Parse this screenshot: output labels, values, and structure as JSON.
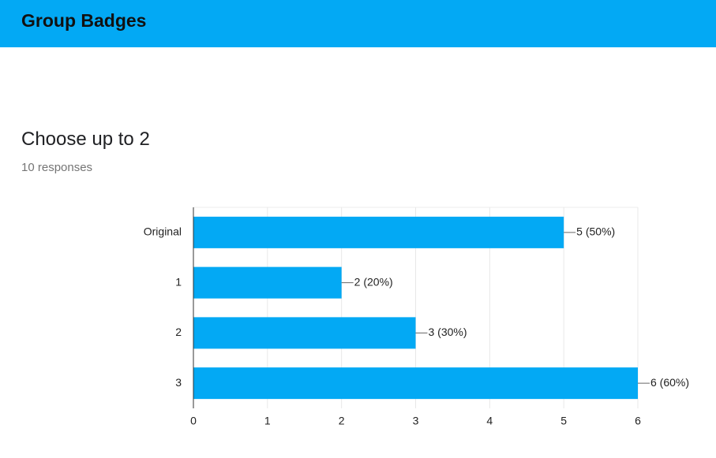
{
  "header": {
    "title": "Group Badges"
  },
  "question": {
    "title": "Choose up to 2",
    "responses": "10 responses"
  },
  "chart_data": {
    "type": "bar",
    "orientation": "horizontal",
    "categories": [
      "Original",
      "1",
      "2",
      "3"
    ],
    "values": [
      5,
      2,
      3,
      6
    ],
    "value_labels": [
      "5 (50%)",
      "2 (20%)",
      "3 (30%)",
      "6 (60%)"
    ],
    "color": "#03a9f4",
    "xlim": [
      0,
      6
    ],
    "xticks": [
      0,
      1,
      2,
      3,
      4,
      5,
      6
    ],
    "grid": true
  }
}
